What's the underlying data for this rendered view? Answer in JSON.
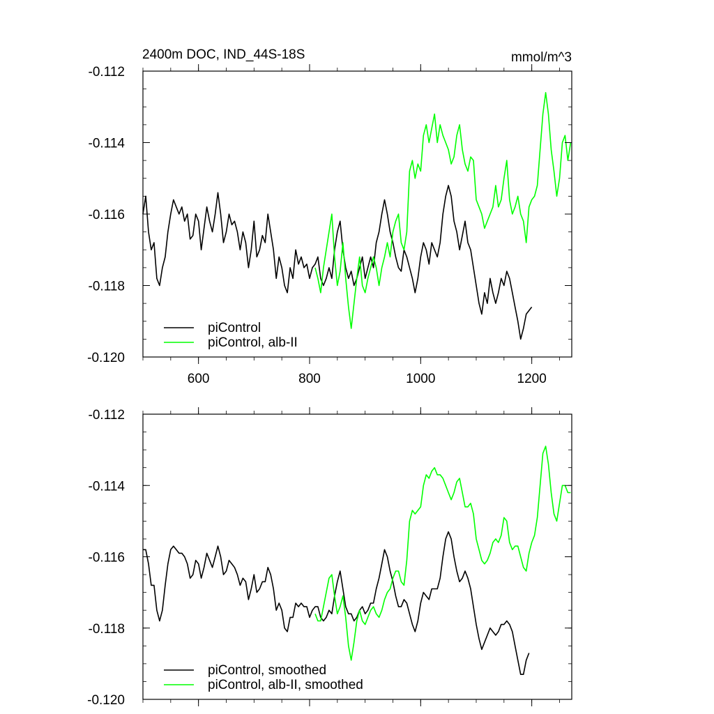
{
  "figure": {
    "title_left": "2400m DOC, IND_44S-18S",
    "title_right": "mmol/m^3"
  },
  "chart_data": [
    {
      "type": "line",
      "title": "2400m DOC, IND_44S-18S",
      "units": "mmol/m^3",
      "xlabel": "",
      "ylabel": "",
      "xlim": [
        500,
        1272
      ],
      "ylim": [
        -0.12,
        -0.112
      ],
      "xticks": [
        600,
        800,
        1000,
        1200
      ],
      "xtick_labels": [
        "600",
        "800",
        "1000",
        "1200"
      ],
      "yticks": [
        -0.12,
        -0.118,
        -0.116,
        -0.114,
        -0.112
      ],
      "ytick_labels": [
        "-0.120",
        "-0.118",
        "-0.116",
        "-0.114",
        "-0.112"
      ],
      "grid": false,
      "legend": "bottom-left",
      "series": [
        {
          "name": "piControl",
          "color": "#000000",
          "x": [
            500,
            505,
            510,
            515,
            520,
            525,
            530,
            535,
            540,
            545,
            550,
            555,
            560,
            565,
            570,
            575,
            580,
            585,
            590,
            595,
            600,
            605,
            610,
            615,
            620,
            625,
            630,
            635,
            640,
            645,
            650,
            655,
            660,
            665,
            670,
            675,
            680,
            685,
            690,
            695,
            700,
            705,
            710,
            715,
            720,
            725,
            730,
            735,
            740,
            745,
            750,
            755,
            760,
            765,
            770,
            775,
            780,
            785,
            790,
            795,
            800,
            805,
            810,
            815,
            820,
            825,
            830,
            835,
            840,
            845,
            850,
            855,
            860,
            865,
            870,
            875,
            880,
            885,
            890,
            895,
            900,
            905,
            910,
            915,
            920,
            925,
            930,
            935,
            940,
            945,
            950,
            955,
            960,
            965,
            970,
            975,
            980,
            985,
            990,
            995,
            1000,
            1005,
            1010,
            1015,
            1020,
            1025,
            1030,
            1035,
            1040,
            1045,
            1050,
            1055,
            1060,
            1065,
            1070,
            1075,
            1080,
            1085,
            1090,
            1095,
            1100,
            1105,
            1110,
            1115,
            1120,
            1125,
            1130,
            1135,
            1140,
            1145,
            1150,
            1155,
            1160,
            1165,
            1170,
            1175,
            1180,
            1185,
            1190,
            1195,
            1200
          ],
          "y": [
            -0.116,
            -0.1155,
            -0.1165,
            -0.117,
            -0.1168,
            -0.1178,
            -0.118,
            -0.1175,
            -0.1172,
            -0.1165,
            -0.116,
            -0.1156,
            -0.1158,
            -0.116,
            -0.1158,
            -0.1162,
            -0.116,
            -0.1167,
            -0.1166,
            -0.116,
            -0.1162,
            -0.117,
            -0.1164,
            -0.1158,
            -0.1162,
            -0.1165,
            -0.116,
            -0.1154,
            -0.116,
            -0.1168,
            -0.1165,
            -0.116,
            -0.1163,
            -0.1162,
            -0.1165,
            -0.117,
            -0.1165,
            -0.1168,
            -0.1175,
            -0.117,
            -0.1162,
            -0.1172,
            -0.117,
            -0.1166,
            -0.1168,
            -0.116,
            -0.1165,
            -0.117,
            -0.1178,
            -0.1172,
            -0.1175,
            -0.118,
            -0.1182,
            -0.1175,
            -0.1178,
            -0.117,
            -0.1174,
            -0.1172,
            -0.1175,
            -0.1174,
            -0.1178,
            -0.1175,
            -0.1174,
            -0.1172,
            -0.1178,
            -0.118,
            -0.1178,
            -0.1175,
            -0.1178,
            -0.117,
            -0.1165,
            -0.1162,
            -0.117,
            -0.1175,
            -0.1178,
            -0.1176,
            -0.118,
            -0.1178,
            -0.1175,
            -0.1172,
            -0.1178,
            -0.1175,
            -0.1172,
            -0.1175,
            -0.1168,
            -0.1165,
            -0.116,
            -0.1156,
            -0.116,
            -0.1165,
            -0.1168,
            -0.1172,
            -0.1175,
            -0.1176,
            -0.117,
            -0.1172,
            -0.1175,
            -0.1178,
            -0.1182,
            -0.1178,
            -0.1172,
            -0.1168,
            -0.117,
            -0.1174,
            -0.1168,
            -0.117,
            -0.1172,
            -0.1168,
            -0.116,
            -0.1155,
            -0.1152,
            -0.1155,
            -0.1162,
            -0.1165,
            -0.117,
            -0.1166,
            -0.1162,
            -0.1168,
            -0.117,
            -0.1175,
            -0.118,
            -0.1185,
            -0.1188,
            -0.1182,
            -0.1185,
            -0.1178,
            -0.1182,
            -0.1185,
            -0.1182,
            -0.1178,
            -0.118,
            -0.1176,
            -0.1178,
            -0.1182,
            -0.1186,
            -0.119,
            -0.1195,
            -0.1192,
            -0.1188,
            -0.1187,
            -0.1186
          ]
        },
        {
          "name": "piControl, alb-II",
          "color": "#00ff00",
          "x": [
            810,
            815,
            820,
            825,
            830,
            835,
            840,
            845,
            850,
            855,
            860,
            865,
            870,
            875,
            880,
            885,
            890,
            895,
            900,
            905,
            910,
            915,
            920,
            925,
            930,
            935,
            940,
            945,
            950,
            955,
            960,
            965,
            970,
            975,
            980,
            985,
            990,
            995,
            1000,
            1005,
            1010,
            1015,
            1020,
            1025,
            1030,
            1035,
            1040,
            1045,
            1050,
            1055,
            1060,
            1065,
            1070,
            1075,
            1080,
            1085,
            1090,
            1095,
            1100,
            1105,
            1110,
            1115,
            1120,
            1125,
            1130,
            1135,
            1140,
            1145,
            1150,
            1155,
            1160,
            1165,
            1170,
            1175,
            1180,
            1185,
            1190,
            1195,
            1200,
            1205,
            1210,
            1215,
            1220,
            1225,
            1230,
            1235,
            1240,
            1245,
            1250,
            1255,
            1260,
            1265,
            1270
          ],
          "y": [
            -0.1175,
            -0.1178,
            -0.1182,
            -0.1175,
            -0.117,
            -0.1165,
            -0.116,
            -0.1172,
            -0.118,
            -0.1176,
            -0.1168,
            -0.1178,
            -0.1186,
            -0.1192,
            -0.1185,
            -0.1178,
            -0.1172,
            -0.118,
            -0.1182,
            -0.1178,
            -0.1175,
            -0.1172,
            -0.1175,
            -0.118,
            -0.1175,
            -0.1172,
            -0.1168,
            -0.1172,
            -0.1165,
            -0.1162,
            -0.116,
            -0.1168,
            -0.117,
            -0.1165,
            -0.1148,
            -0.1145,
            -0.115,
            -0.1146,
            -0.1148,
            -0.1138,
            -0.1135,
            -0.114,
            -0.1136,
            -0.1132,
            -0.114,
            -0.1135,
            -0.1138,
            -0.114,
            -0.1142,
            -0.1146,
            -0.1144,
            -0.1138,
            -0.1135,
            -0.1142,
            -0.1146,
            -0.1148,
            -0.1144,
            -0.1145,
            -0.1156,
            -0.1158,
            -0.116,
            -0.1164,
            -0.1162,
            -0.116,
            -0.1158,
            -0.1152,
            -0.1158,
            -0.1156,
            -0.115,
            -0.1145,
            -0.1156,
            -0.116,
            -0.1158,
            -0.1155,
            -0.116,
            -0.1162,
            -0.1168,
            -0.1158,
            -0.1156,
            -0.1155,
            -0.1152,
            -0.1142,
            -0.1132,
            -0.1126,
            -0.1132,
            -0.1142,
            -0.1148,
            -0.1155,
            -0.115,
            -0.114,
            -0.1138,
            -0.1145,
            -0.114
          ]
        }
      ]
    },
    {
      "type": "line",
      "title": "",
      "xlabel": "",
      "ylabel": "",
      "xlim": [
        500,
        1272
      ],
      "ylim": [
        -0.12,
        -0.112
      ],
      "xticks": [
        600,
        800,
        1000,
        1200
      ],
      "xtick_labels": [],
      "yticks": [
        -0.12,
        -0.118,
        -0.116,
        -0.114,
        -0.112
      ],
      "ytick_labels": [
        "-0.120",
        "-0.118",
        "-0.116",
        "-0.114",
        "-0.112"
      ],
      "grid": false,
      "legend": "bottom-left",
      "series": [
        {
          "name": "piControl, smoothed",
          "color": "#000000",
          "x": [
            500,
            505,
            510,
            515,
            520,
            525,
            530,
            535,
            540,
            545,
            550,
            555,
            560,
            565,
            570,
            575,
            580,
            585,
            590,
            595,
            600,
            605,
            610,
            615,
            620,
            625,
            630,
            635,
            640,
            645,
            650,
            655,
            660,
            665,
            670,
            675,
            680,
            685,
            690,
            695,
            700,
            705,
            710,
            715,
            720,
            725,
            730,
            735,
            740,
            745,
            750,
            755,
            760,
            765,
            770,
            775,
            780,
            785,
            790,
            795,
            800,
            805,
            810,
            815,
            820,
            825,
            830,
            835,
            840,
            845,
            850,
            855,
            860,
            865,
            870,
            875,
            880,
            885,
            890,
            895,
            900,
            905,
            910,
            915,
            920,
            925,
            930,
            935,
            940,
            945,
            950,
            955,
            960,
            965,
            970,
            975,
            980,
            985,
            990,
            995,
            1000,
            1005,
            1010,
            1015,
            1020,
            1025,
            1030,
            1035,
            1040,
            1045,
            1050,
            1055,
            1060,
            1065,
            1070,
            1075,
            1080,
            1085,
            1090,
            1095,
            1100,
            1105,
            1110,
            1115,
            1120,
            1125,
            1130,
            1135,
            1140,
            1145,
            1150,
            1155,
            1160,
            1165,
            1170,
            1175,
            1180,
            1185,
            1190,
            1195
          ],
          "y": [
            -0.1158,
            -0.1158,
            -0.1162,
            -0.1168,
            -0.1168,
            -0.1175,
            -0.1178,
            -0.1175,
            -0.1168,
            -0.1162,
            -0.1158,
            -0.1157,
            -0.1158,
            -0.1159,
            -0.1159,
            -0.116,
            -0.1162,
            -0.1166,
            -0.1165,
            -0.1161,
            -0.1162,
            -0.1166,
            -0.1163,
            -0.1159,
            -0.1161,
            -0.1163,
            -0.116,
            -0.1157,
            -0.116,
            -0.1165,
            -0.1164,
            -0.1161,
            -0.1162,
            -0.1163,
            -0.1165,
            -0.1168,
            -0.1166,
            -0.1167,
            -0.1172,
            -0.1169,
            -0.1165,
            -0.117,
            -0.1169,
            -0.1167,
            -0.1167,
            -0.1163,
            -0.1165,
            -0.1169,
            -0.1175,
            -0.1173,
            -0.1175,
            -0.118,
            -0.1181,
            -0.1177,
            -0.1177,
            -0.1173,
            -0.1174,
            -0.1173,
            -0.1174,
            -0.1174,
            -0.1177,
            -0.1175,
            -0.1174,
            -0.1174,
            -0.1177,
            -0.1178,
            -0.1177,
            -0.1175,
            -0.1176,
            -0.1171,
            -0.1167,
            -0.1164,
            -0.1169,
            -0.1174,
            -0.1176,
            -0.1176,
            -0.1178,
            -0.1177,
            -0.1175,
            -0.1174,
            -0.1176,
            -0.1175,
            -0.1173,
            -0.1173,
            -0.1169,
            -0.1166,
            -0.1162,
            -0.1158,
            -0.116,
            -0.1164,
            -0.1167,
            -0.1171,
            -0.1174,
            -0.1174,
            -0.1172,
            -0.1173,
            -0.1176,
            -0.1179,
            -0.1181,
            -0.1178,
            -0.1173,
            -0.117,
            -0.1171,
            -0.1172,
            -0.1169,
            -0.1169,
            -0.1169,
            -0.1166,
            -0.116,
            -0.1155,
            -0.1153,
            -0.1155,
            -0.116,
            -0.1164,
            -0.1167,
            -0.1166,
            -0.1164,
            -0.1166,
            -0.1169,
            -0.1174,
            -0.1179,
            -0.1183,
            -0.1186,
            -0.1184,
            -0.1182,
            -0.118,
            -0.1181,
            -0.1182,
            -0.1181,
            -0.1179,
            -0.1179,
            -0.1178,
            -0.1179,
            -0.1181,
            -0.1185,
            -0.1189,
            -0.1193,
            -0.1193,
            -0.1189,
            -0.1187
          ]
        },
        {
          "name": "piControl, alb-II, smoothed",
          "color": "#00ff00",
          "x": [
            810,
            815,
            820,
            825,
            830,
            835,
            840,
            845,
            850,
            855,
            860,
            865,
            870,
            875,
            880,
            885,
            890,
            895,
            900,
            905,
            910,
            915,
            920,
            925,
            930,
            935,
            940,
            945,
            950,
            955,
            960,
            965,
            970,
            975,
            980,
            985,
            990,
            995,
            1000,
            1005,
            1010,
            1015,
            1020,
            1025,
            1030,
            1035,
            1040,
            1045,
            1050,
            1055,
            1060,
            1065,
            1070,
            1075,
            1080,
            1085,
            1090,
            1095,
            1100,
            1105,
            1110,
            1115,
            1120,
            1125,
            1130,
            1135,
            1140,
            1145,
            1150,
            1155,
            1160,
            1165,
            1170,
            1175,
            1180,
            1185,
            1190,
            1195,
            1200,
            1205,
            1210,
            1215,
            1220,
            1225,
            1230,
            1235,
            1240,
            1245,
            1250,
            1255,
            1260,
            1265,
            1270
          ],
          "y": [
            -0.1176,
            -0.1178,
            -0.1178,
            -0.1174,
            -0.117,
            -0.1166,
            -0.1165,
            -0.1171,
            -0.1176,
            -0.1174,
            -0.1171,
            -0.1177,
            -0.1185,
            -0.1189,
            -0.1184,
            -0.1178,
            -0.1175,
            -0.1178,
            -0.1179,
            -0.1177,
            -0.1175,
            -0.1174,
            -0.1176,
            -0.1177,
            -0.1175,
            -0.1172,
            -0.117,
            -0.1169,
            -0.1166,
            -0.1164,
            -0.1164,
            -0.1167,
            -0.1168,
            -0.1161,
            -0.115,
            -0.1147,
            -0.1148,
            -0.1147,
            -0.1146,
            -0.114,
            -0.1137,
            -0.1138,
            -0.1136,
            -0.1135,
            -0.1137,
            -0.1137,
            -0.1138,
            -0.114,
            -0.1142,
            -0.1144,
            -0.1142,
            -0.1139,
            -0.1138,
            -0.1142,
            -0.1146,
            -0.1146,
            -0.1145,
            -0.1148,
            -0.1155,
            -0.1158,
            -0.1161,
            -0.1162,
            -0.1161,
            -0.1159,
            -0.1156,
            -0.1155,
            -0.1156,
            -0.1154,
            -0.1149,
            -0.115,
            -0.1156,
            -0.1158,
            -0.1157,
            -0.1157,
            -0.116,
            -0.1163,
            -0.1164,
            -0.1159,
            -0.1156,
            -0.1154,
            -0.1149,
            -0.114,
            -0.1131,
            -0.1129,
            -0.1134,
            -0.1142,
            -0.1148,
            -0.115,
            -0.1145,
            -0.114,
            -0.114,
            -0.1142,
            -0.1142
          ]
        }
      ]
    }
  ]
}
